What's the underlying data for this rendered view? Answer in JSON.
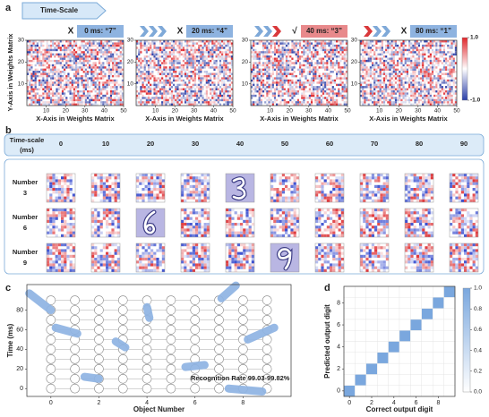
{
  "chart_data": [
    {
      "type": "heatmap-row",
      "panel": "a",
      "arrow_label": "Time-Scale",
      "panels": [
        {
          "title": "0 ms: “7”",
          "verdict": "X",
          "correct": false
        },
        {
          "title": "20 ms: “4”",
          "verdict": "X",
          "correct": false
        },
        {
          "title": "40 ms: “3”",
          "verdict": "√",
          "correct": true
        },
        {
          "title": "80 ms: “1”",
          "verdict": "X",
          "correct": false
        }
      ],
      "xlabel": "X-Axis in Weights Matrix",
      "ylabel": "Y-Axis in Weights Matrix",
      "xlim": [
        0,
        50
      ],
      "xticks": [
        10,
        20,
        30,
        40,
        50
      ],
      "ylim": [
        0,
        30
      ],
      "yticks": [
        10,
        20,
        30
      ],
      "colorbar": {
        "lim": [
          -1,
          1
        ],
        "ticks": [
          {
            "value": 1,
            "label": "1.0"
          },
          {
            "value": -1,
            "label": "-1.0"
          }
        ],
        "colors": [
          "#2b3fa8",
          "#ffffff",
          "#e0262b"
        ]
      }
    },
    {
      "type": "image-grid",
      "panel": "b",
      "header": [
        "Time-scale",
        "(ms)"
      ],
      "columns": [
        0,
        10,
        20,
        30,
        40,
        50,
        60,
        70,
        80,
        90
      ],
      "rows": [
        {
          "name": "Number",
          "number": "3",
          "highlight_ms": 40
        },
        {
          "name": "Number",
          "number": "6",
          "highlight_ms": 20
        },
        {
          "name": "Number",
          "number": "9",
          "highlight_ms": 50
        }
      ]
    },
    {
      "type": "segments",
      "panel": "c",
      "xlabel": "Object Number",
      "ylabel": "Time (ms)",
      "xlim": [
        -1,
        10
      ],
      "xticks": [
        0,
        2,
        4,
        6,
        8
      ],
      "ylim": [
        -8,
        106
      ],
      "yticks": [
        0,
        20,
        40,
        60,
        80
      ],
      "grid_x": [
        0,
        1,
        2,
        3,
        4,
        5,
        6,
        7,
        8,
        9
      ],
      "grid_y": [
        0,
        10,
        20,
        30,
        40,
        50,
        60,
        70,
        80,
        90
      ],
      "color": "#8fb4e3",
      "segments": [
        {
          "x": [
            -0.9,
            0
          ],
          "y": [
            97,
            80
          ]
        },
        {
          "x": [
            0.2,
            1.1
          ],
          "y": [
            62,
            56
          ]
        },
        {
          "x": [
            1.4,
            2
          ],
          "y": [
            12,
            10
          ]
        },
        {
          "x": [
            2.7,
            3.1
          ],
          "y": [
            48,
            42
          ]
        },
        {
          "x": [
            4,
            4.1
          ],
          "y": [
            83,
            72
          ]
        },
        {
          "x": [
            5.6,
            6.4
          ],
          "y": [
            22,
            24
          ]
        },
        {
          "x": [
            7.1,
            7.7
          ],
          "y": [
            92,
            105
          ]
        },
        {
          "x": [
            7.4,
            8.8
          ],
          "y": [
            0,
            -3
          ]
        },
        {
          "x": [
            8.2,
            9.3
          ],
          "y": [
            50,
            62
          ]
        }
      ],
      "annotation": "Recognition Rate 99.03-99.82%"
    },
    {
      "type": "matrix",
      "panel": "d",
      "xlabel": "Correct output digit",
      "ylabel": "Predicted output digit",
      "xlim": [
        -0.5,
        9.5
      ],
      "xticks": [
        0,
        2,
        4,
        6,
        8
      ],
      "ylim": [
        -0.5,
        9.5
      ],
      "yticks": [
        0,
        2,
        4,
        6,
        8
      ],
      "cmap": [
        "#ffffff",
        "#7aa7de"
      ],
      "clim": [
        0,
        1
      ],
      "cticks": [
        {
          "value": 0,
          "label": "0.0"
        },
        {
          "value": 0.2,
          "label": "0.2"
        },
        {
          "value": 0.4,
          "label": "0.4"
        },
        {
          "value": 0.6,
          "label": "0.6"
        },
        {
          "value": 0.8,
          "label": "0.8"
        },
        {
          "value": 1,
          "label": "1.0"
        }
      ],
      "values": [
        [
          1,
          0,
          0,
          0,
          0,
          0,
          0,
          0,
          0,
          0
        ],
        [
          0,
          1,
          0,
          0,
          0,
          0,
          0,
          0,
          0,
          0
        ],
        [
          0,
          0,
          1,
          0,
          0,
          0,
          0,
          0,
          0,
          0
        ],
        [
          0,
          0,
          0,
          1,
          0,
          0,
          0,
          0,
          0,
          0
        ],
        [
          0,
          0,
          0,
          0,
          1,
          0,
          0,
          0,
          0,
          0
        ],
        [
          0,
          0,
          0,
          0,
          0,
          1,
          0,
          0,
          0,
          0
        ],
        [
          0,
          0,
          0,
          0,
          0,
          0,
          1,
          0,
          0,
          0
        ],
        [
          0,
          0,
          0,
          0,
          0,
          0,
          0,
          1,
          0,
          0
        ],
        [
          0,
          0,
          0,
          0,
          0,
          0,
          0,
          0,
          1,
          0
        ],
        [
          0,
          0,
          0,
          0,
          0,
          0,
          0,
          0,
          0,
          1
        ]
      ]
    }
  ]
}
